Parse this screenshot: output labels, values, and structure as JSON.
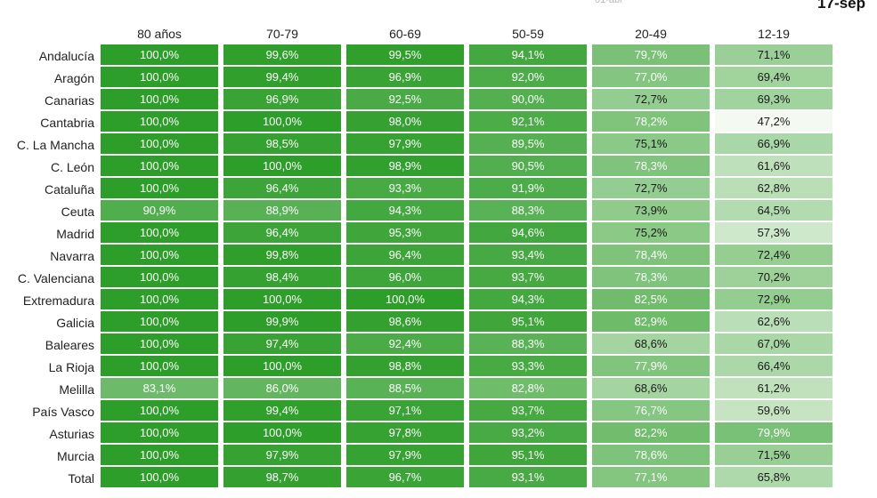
{
  "header": {
    "faint_label": "01-abr",
    "date_label": "17-sep"
  },
  "chart_data": {
    "type": "heatmap",
    "columns": [
      "80 años",
      "70-79",
      "60-69",
      "50-59",
      "20-49",
      "12-19"
    ],
    "rows": [
      "Andalucía",
      "Aragón",
      "Canarias",
      "Cantabria",
      "C. La Mancha",
      "C. León",
      "Cataluña",
      "Ceuta",
      "Madrid",
      "Navarra",
      "C. Valenciana",
      "Extremadura",
      "Galicia",
      "Baleares",
      "La Rioja",
      "Melilla",
      "País Vasco",
      "Asturias",
      "Murcia",
      "Total"
    ],
    "values": [
      [
        100.0,
        99.6,
        99.5,
        94.1,
        79.7,
        71.1
      ],
      [
        100.0,
        99.4,
        96.9,
        92.0,
        77.0,
        69.4
      ],
      [
        100.0,
        96.9,
        92.5,
        90.0,
        72.7,
        69.3
      ],
      [
        100.0,
        100.0,
        98.0,
        92.1,
        78.2,
        47.2
      ],
      [
        100.0,
        98.5,
        97.9,
        89.5,
        75.1,
        66.9
      ],
      [
        100.0,
        100.0,
        98.9,
        90.5,
        78.3,
        61.6
      ],
      [
        100.0,
        96.4,
        93.3,
        91.9,
        72.7,
        62.8
      ],
      [
        90.9,
        88.9,
        94.3,
        88.3,
        73.9,
        64.5
      ],
      [
        100.0,
        96.4,
        95.3,
        94.6,
        75.2,
        57.3
      ],
      [
        100.0,
        99.8,
        96.4,
        93.4,
        78.4,
        72.4
      ],
      [
        100.0,
        98.4,
        96.0,
        93.7,
        78.3,
        70.2
      ],
      [
        100.0,
        100.0,
        100.0,
        94.3,
        82.5,
        72.9
      ],
      [
        100.0,
        99.9,
        98.6,
        95.1,
        82.9,
        62.6
      ],
      [
        100.0,
        97.4,
        92.4,
        88.3,
        68.6,
        67.0
      ],
      [
        100.0,
        100.0,
        98.8,
        93.3,
        77.9,
        66.4
      ],
      [
        83.1,
        86.0,
        88.5,
        82.8,
        68.6,
        61.2
      ],
      [
        100.0,
        99.4,
        97.1,
        93.7,
        76.7,
        59.6
      ],
      [
        100.0,
        100.0,
        97.8,
        93.2,
        82.2,
        79.9
      ],
      [
        100.0,
        97.9,
        97.9,
        95.1,
        78.6,
        71.5
      ],
      [
        100.0,
        98.7,
        96.7,
        93.1,
        77.1,
        65.8
      ]
    ],
    "display_values": [
      [
        "100,0%",
        "99,6%",
        "99,5%",
        "94,1%",
        "79,7%",
        "71,1%"
      ],
      [
        "100,0%",
        "99,4%",
        "96,9%",
        "92,0%",
        "77,0%",
        "69,4%"
      ],
      [
        "100,0%",
        "96,9%",
        "92,5%",
        "90,0%",
        "72,7%",
        "69,3%"
      ],
      [
        "100,0%",
        "100,0%",
        "98,0%",
        "92,1%",
        "78,2%",
        "47,2%"
      ],
      [
        "100,0%",
        "98,5%",
        "97,9%",
        "89,5%",
        "75,1%",
        "66,9%"
      ],
      [
        "100,0%",
        "100,0%",
        "98,9%",
        "90,5%",
        "78,3%",
        "61,6%"
      ],
      [
        "100,0%",
        "96,4%",
        "93,3%",
        "91,9%",
        "72,7%",
        "62,8%"
      ],
      [
        "90,9%",
        "88,9%",
        "94,3%",
        "88,3%",
        "73,9%",
        "64,5%"
      ],
      [
        "100,0%",
        "96,4%",
        "95,3%",
        "94,6%",
        "75,2%",
        "57,3%"
      ],
      [
        "100,0%",
        "99,8%",
        "96,4%",
        "93,4%",
        "78,4%",
        "72,4%"
      ],
      [
        "100,0%",
        "98,4%",
        "96,0%",
        "93,7%",
        "78,3%",
        "70,2%"
      ],
      [
        "100,0%",
        "100,0%",
        "100,0%",
        "94,3%",
        "82,5%",
        "72,9%"
      ],
      [
        "100,0%",
        "99,9%",
        "98,6%",
        "95,1%",
        "82,9%",
        "62,6%"
      ],
      [
        "100,0%",
        "97,4%",
        "92,4%",
        "88,3%",
        "68,6%",
        "67,0%"
      ],
      [
        "100,0%",
        "100,0%",
        "98,8%",
        "93,3%",
        "77,9%",
        "66,4%"
      ],
      [
        "83,1%",
        "86,0%",
        "88,5%",
        "82,8%",
        "68,6%",
        "61,2%"
      ],
      [
        "100,0%",
        "99,4%",
        "97,1%",
        "93,7%",
        "76,7%",
        "59,6%"
      ],
      [
        "100,0%",
        "100,0%",
        "97,8%",
        "93,2%",
        "82,2%",
        "79,9%"
      ],
      [
        "100,0%",
        "97,9%",
        "97,9%",
        "95,1%",
        "78,6%",
        "71,5%"
      ],
      [
        "100,0%",
        "98,7%",
        "96,7%",
        "93,1%",
        "77,1%",
        "65,8%"
      ]
    ],
    "color_scale": {
      "min": 47.2,
      "max": 100.0,
      "low_color": "#f4f9f1",
      "high_color": "#2e9e2a"
    }
  }
}
